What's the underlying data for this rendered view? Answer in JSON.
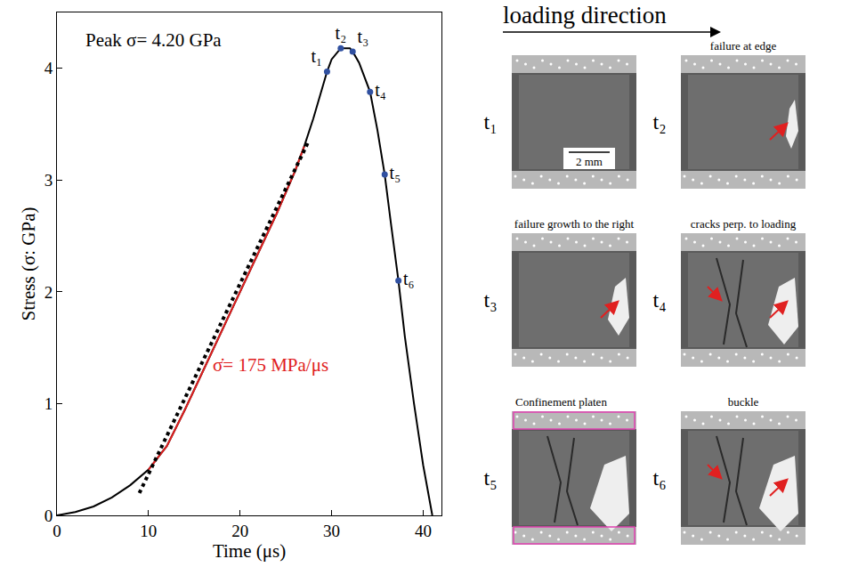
{
  "chart_data": {
    "type": "line",
    "x_label": "Time (μs)",
    "y_label": "Stress (σ: GPa)",
    "xlim": [
      0,
      42
    ],
    "ylim": [
      0,
      4.5
    ],
    "xticks": [
      0,
      10,
      20,
      30,
      40
    ],
    "yticks": [
      0,
      1,
      2,
      3,
      4
    ],
    "grid": false,
    "series": [
      {
        "type": "line",
        "color": "#000000",
        "line_style": "solid",
        "x": [
          0,
          2,
          4,
          6,
          8,
          10,
          12,
          14,
          16,
          18,
          20,
          22,
          24,
          26,
          27,
          28,
          29,
          29.5,
          30,
          31,
          32,
          32.3,
          33,
          34.2,
          35,
          35.8,
          36.5,
          37.3,
          38,
          39,
          40,
          41
        ],
        "values": [
          0,
          0.03,
          0.08,
          0.16,
          0.27,
          0.41,
          0.62,
          0.95,
          1.3,
          1.65,
          2.0,
          2.35,
          2.7,
          3.08,
          3.3,
          3.55,
          3.82,
          3.97,
          4.08,
          4.18,
          4.18,
          4.15,
          4.05,
          3.79,
          3.45,
          3.05,
          2.6,
          2.1,
          1.6,
          1.0,
          0.45,
          0
        ]
      },
      {
        "type": "line",
        "color": "#e02020",
        "line_style": "solid",
        "x": [
          10,
          12,
          14,
          16,
          18,
          20,
          22,
          24,
          26,
          27
        ],
        "values": [
          0.41,
          0.62,
          0.95,
          1.3,
          1.65,
          2.0,
          2.35,
          2.7,
          3.08,
          3.3
        ]
      },
      {
        "type": "line",
        "color": "#000000",
        "line_style": "dash",
        "x": [
          9,
          27.5
        ],
        "values": [
          0.2,
          3.35
        ]
      },
      {
        "type": "scatter",
        "color": "#3050a0",
        "marker": "circle",
        "x": [
          29.5,
          31,
          32.3,
          34.2,
          35.8,
          37.3
        ],
        "values": [
          3.97,
          4.18,
          4.15,
          3.79,
          3.05,
          2.1
        ],
        "labels": [
          "t₁",
          "t₂",
          "t₃",
          "t₄",
          "t₅",
          "t₆"
        ]
      }
    ],
    "annotations": [
      {
        "text": "Peak σ= 4.20 GPa",
        "color": "#000000"
      },
      {
        "text": "σ̇= 175 MPa/μs",
        "color": "#e02020"
      }
    ]
  },
  "photo_panels": {
    "header": "loading direction",
    "scale_bar": "2 mm",
    "panels": [
      {
        "label": "t₁"
      },
      {
        "label": "t₂",
        "caption": "failure at edge"
      },
      {
        "label": "t₃",
        "caption": "failure growth to the right"
      },
      {
        "label": "t₄",
        "caption": "cracks perp. to loading"
      },
      {
        "label": "t₅",
        "caption": "Confinement platen"
      },
      {
        "label": "t₆",
        "caption": "buckle"
      }
    ]
  }
}
